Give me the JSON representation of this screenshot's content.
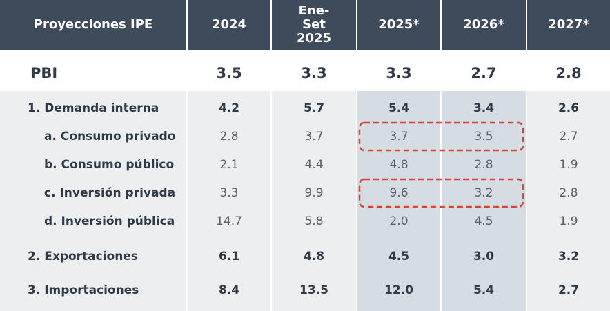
{
  "header": {
    "columns": [
      "Proyecciones IPE",
      "2024",
      "Ene-Set 2025",
      "2025*",
      "2026*",
      "2027*"
    ]
  },
  "rows": [
    {
      "label": "PBI",
      "values": [
        "3.5",
        "3.3",
        "3.3",
        "2.7",
        "2.8"
      ],
      "bold": true
    },
    {
      "label": "1. Demanda interna",
      "values": [
        "4.2",
        "5.7",
        "5.4",
        "3.4",
        "2.6"
      ],
      "bold": true
    },
    {
      "label": "a. Consumo privado",
      "values": [
        "2.8",
        "3.7",
        "3.7",
        "3.5",
        "2.7"
      ],
      "bold": false
    },
    {
      "label": "b. Consumo público",
      "values": [
        "2.1",
        "4.4",
        "4.8",
        "2.8",
        "1.9"
      ],
      "bold": false
    },
    {
      "label": "c. Inversión privada",
      "values": [
        "3.3",
        "9.9",
        "9.6",
        "3.2",
        "2.8"
      ],
      "bold": false
    },
    {
      "label": "d. Inversión pública",
      "values": [
        "14.7",
        "5.8",
        "2.0",
        "4.5",
        "1.9"
      ],
      "bold": false
    },
    {
      "label": "2. Exportaciones",
      "values": [
        "6.1",
        "4.8",
        "4.5",
        "3.0",
        "3.2"
      ],
      "bold": true
    },
    {
      "label": "3. Importaciones",
      "values": [
        "8.4",
        "13.5",
        "12.0",
        "5.4",
        "2.7"
      ],
      "bold": true
    }
  ]
}
